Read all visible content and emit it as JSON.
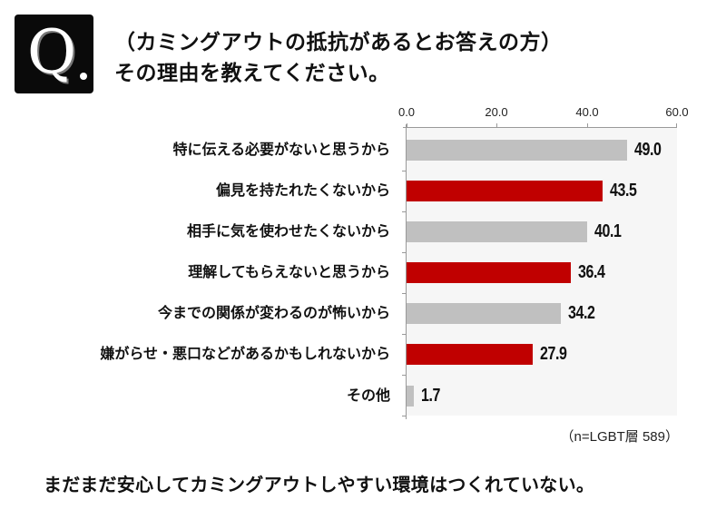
{
  "header": {
    "q_icon": "Q",
    "title_line1": "（カミングアウトの抵抗があるとお答えの方）",
    "title_line2": "その理由を教えてください。"
  },
  "colors": {
    "gray_bar": "#c0c0c0",
    "red_bar": "#c00000",
    "plot_bg": "#f6f6f6",
    "axis": "#999999"
  },
  "axis": {
    "ticks": [
      "0.0",
      "20.0",
      "40.0",
      "60.0"
    ]
  },
  "rows": [
    {
      "label": "特に伝える必要がないと思うから",
      "value": "49.0",
      "color": "gray"
    },
    {
      "label": "偏見を持たれたくないから",
      "value": "43.5",
      "color": "red"
    },
    {
      "label": "相手に気を使わせたくないから",
      "value": "40.1",
      "color": "gray"
    },
    {
      "label": "理解してもらえないと思うから",
      "value": "36.4",
      "color": "red"
    },
    {
      "label": "今までの関係が変わるのが怖いから",
      "value": "34.2",
      "color": "gray"
    },
    {
      "label": "嫌がらせ・悪口などがあるかもしれないから",
      "value": "27.9",
      "color": "red"
    },
    {
      "label": "その他",
      "value": "1.7",
      "color": "gray"
    }
  ],
  "note": "（n=LGBT層 589）",
  "footer": "まだまだ安心してカミングアウトしやすい環境はつくれていない。",
  "chart_data": {
    "type": "bar",
    "orientation": "horizontal",
    "title": "（カミングアウトの抵抗があるとお答えの方）その理由を教えてください。",
    "categories": [
      "特に伝える必要がないと思うから",
      "偏見を持たれたくないから",
      "相手に気を使わせたくないから",
      "理解してもらえないと思うから",
      "今までの関係が変わるのが怖いから",
      "嫌がらせ・悪口などがあるかもしれないから",
      "その他"
    ],
    "values": [
      49.0,
      43.5,
      40.1,
      36.4,
      34.2,
      27.9,
      1.7
    ],
    "bar_colors": [
      "#c0c0c0",
      "#c00000",
      "#c0c0c0",
      "#c00000",
      "#c0c0c0",
      "#c00000",
      "#c0c0c0"
    ],
    "xlabel": "",
    "ylabel": "",
    "xlim": [
      0,
      60
    ],
    "x_ticks": [
      0.0,
      20.0,
      40.0,
      60.0
    ],
    "axis_position": "top",
    "grid": false,
    "legend": "none",
    "annotation": "（n=LGBT層 589）",
    "caption": "まだまだ安心してカミングアウトしやすい環境はつくれていない。"
  }
}
